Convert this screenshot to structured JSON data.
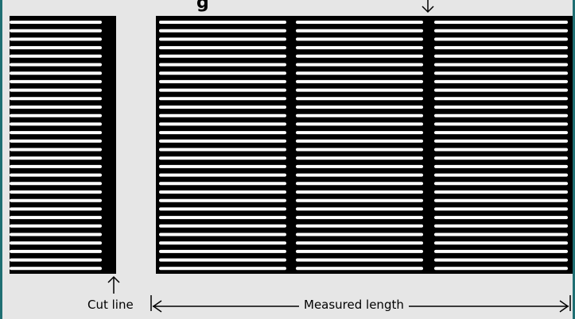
{
  "diagram": {
    "labels": {
      "cut_line": "Cut line",
      "measured_length": "Measured length"
    },
    "partial_title_fragment": "g",
    "colors": {
      "background": "#e6e6e6",
      "frame_accent": "#1f6f73",
      "tubes": "#000000",
      "gaps": "#ffffff",
      "annotation": "#000000"
    },
    "icons": [
      "arrow-up-icon",
      "arrow-down-icon",
      "double-headed-arrow-icon"
    ]
  }
}
